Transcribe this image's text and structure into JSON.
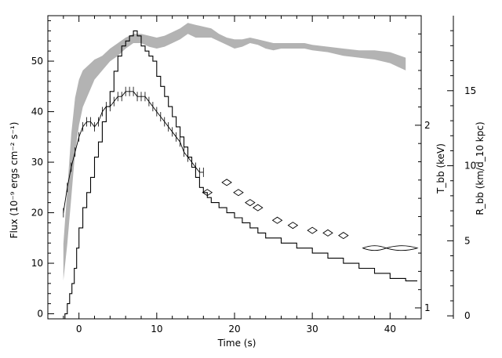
{
  "chart_data": {
    "type": "line",
    "title": "",
    "xlabel": "Time (s)",
    "ylabel": "Flux (10⁻⁹ ergs cm⁻² s⁻¹)",
    "ylabel_temperature": "T_bb (keV)",
    "ylabel_radius": "R_bb (km/d_10 kpc)",
    "xlim": [
      -4,
      44
    ],
    "ylim": [
      -1,
      59
    ],
    "temperature_lim": [
      0.94,
      2.6
    ],
    "radius_lim": [
      -0.2,
      20
    ],
    "xticks": [
      0,
      10,
      20,
      30,
      40
    ],
    "yticks": [
      0,
      10,
      20,
      30,
      40,
      50
    ],
    "temperature_ticks": [
      1,
      2
    ],
    "radius_ticks": [
      0,
      5,
      10,
      15
    ],
    "grid": false,
    "legend": "none",
    "series": [
      {
        "style": "histogram",
        "x": [
          -4,
          -1.8,
          -1.5,
          -1.2,
          -0.9,
          -0.6,
          -0.3,
          0,
          0.5,
          1,
          1.5,
          2,
          2.5,
          3,
          3.5,
          4,
          4.5,
          5,
          5.5,
          6,
          6.5,
          7,
          7.5,
          8,
          8.5,
          9,
          9.5,
          10,
          10.5,
          11,
          11.5,
          12,
          12.5,
          13,
          13.5,
          14,
          14.5,
          15,
          15.5,
          16,
          16.5,
          17,
          18,
          19,
          20,
          21,
          22,
          23,
          24,
          26,
          28,
          30,
          32,
          34,
          36,
          38,
          40,
          42,
          43.5
        ],
        "values": [
          -1,
          0,
          2,
          4,
          6,
          9,
          13,
          17,
          21,
          24,
          27,
          31,
          34,
          38,
          41,
          44,
          48,
          51,
          53,
          54,
          55,
          56,
          55,
          53,
          52,
          51,
          50,
          47,
          45,
          43,
          41,
          39,
          37,
          35,
          33,
          31,
          29,
          27,
          25,
          24,
          23,
          22,
          21,
          20,
          19,
          18,
          17,
          16,
          15,
          14,
          13,
          12,
          11,
          10,
          9,
          8,
          7,
          6.5,
          6.5
        ]
      },
      {
        "style": "error-bars",
        "x": [
          -2,
          -1.5,
          -1,
          -0.5,
          0,
          0.5,
          1,
          1.5,
          2,
          2.5,
          3,
          3.5,
          4,
          4.5,
          5,
          5.5,
          6,
          6.5,
          7,
          7.5,
          8,
          8.5,
          9,
          9.5,
          10,
          10.5,
          11,
          11.5,
          12,
          12.5,
          13,
          13.5,
          14,
          14.5,
          15,
          15.5,
          16
        ],
        "values": [
          20,
          25,
          29,
          32,
          35,
          37,
          38,
          38,
          37,
          38,
          40,
          41,
          41,
          42,
          43,
          43,
          44,
          44,
          44,
          43,
          43,
          43,
          42,
          41,
          40,
          39,
          38,
          37,
          36,
          35,
          34,
          32,
          31,
          30,
          29,
          28,
          28
        ]
      },
      {
        "style": "diamonds",
        "x": [
          16.5,
          19,
          20.5,
          22,
          23,
          25.5,
          27.5,
          30,
          32,
          34
        ],
        "values": [
          24,
          26,
          24,
          22,
          21,
          18.5,
          17.5,
          16.5,
          16,
          15.5
        ]
      },
      {
        "style": "diamond-strip",
        "x": [
          36.5,
          39.5,
          43.5
        ],
        "values": [
          13,
          13,
          13
        ]
      },
      {
        "style": "band",
        "axis": "temperature",
        "x": [
          -2,
          -1.5,
          -1,
          -0.5,
          0,
          0.5,
          1,
          2,
          3,
          4,
          5,
          6,
          7,
          8,
          9,
          10,
          11,
          12,
          13,
          14,
          15,
          16,
          17,
          18,
          19,
          20,
          21,
          22,
          23,
          24,
          25,
          26,
          27,
          28,
          29,
          30,
          32,
          34,
          36,
          38,
          40,
          42
        ],
        "lower": [
          1.15,
          1.35,
          1.6,
          1.85,
          2.0,
          2.1,
          2.15,
          2.25,
          2.3,
          2.35,
          2.38,
          2.42,
          2.45,
          2.45,
          2.43,
          2.42,
          2.43,
          2.45,
          2.47,
          2.5,
          2.48,
          2.48,
          2.48,
          2.46,
          2.44,
          2.42,
          2.43,
          2.45,
          2.44,
          2.42,
          2.41,
          2.42,
          2.42,
          2.42,
          2.42,
          2.41,
          2.4,
          2.38,
          2.37,
          2.36,
          2.34,
          2.3
        ],
        "upper": [
          1.35,
          1.65,
          1.95,
          2.15,
          2.25,
          2.3,
          2.32,
          2.36,
          2.38,
          2.42,
          2.45,
          2.48,
          2.5,
          2.5,
          2.49,
          2.48,
          2.49,
          2.51,
          2.53,
          2.56,
          2.55,
          2.54,
          2.53,
          2.5,
          2.48,
          2.47,
          2.47,
          2.48,
          2.47,
          2.46,
          2.45,
          2.45,
          2.45,
          2.45,
          2.45,
          2.44,
          2.43,
          2.42,
          2.41,
          2.41,
          2.4,
          2.37
        ]
      }
    ]
  }
}
